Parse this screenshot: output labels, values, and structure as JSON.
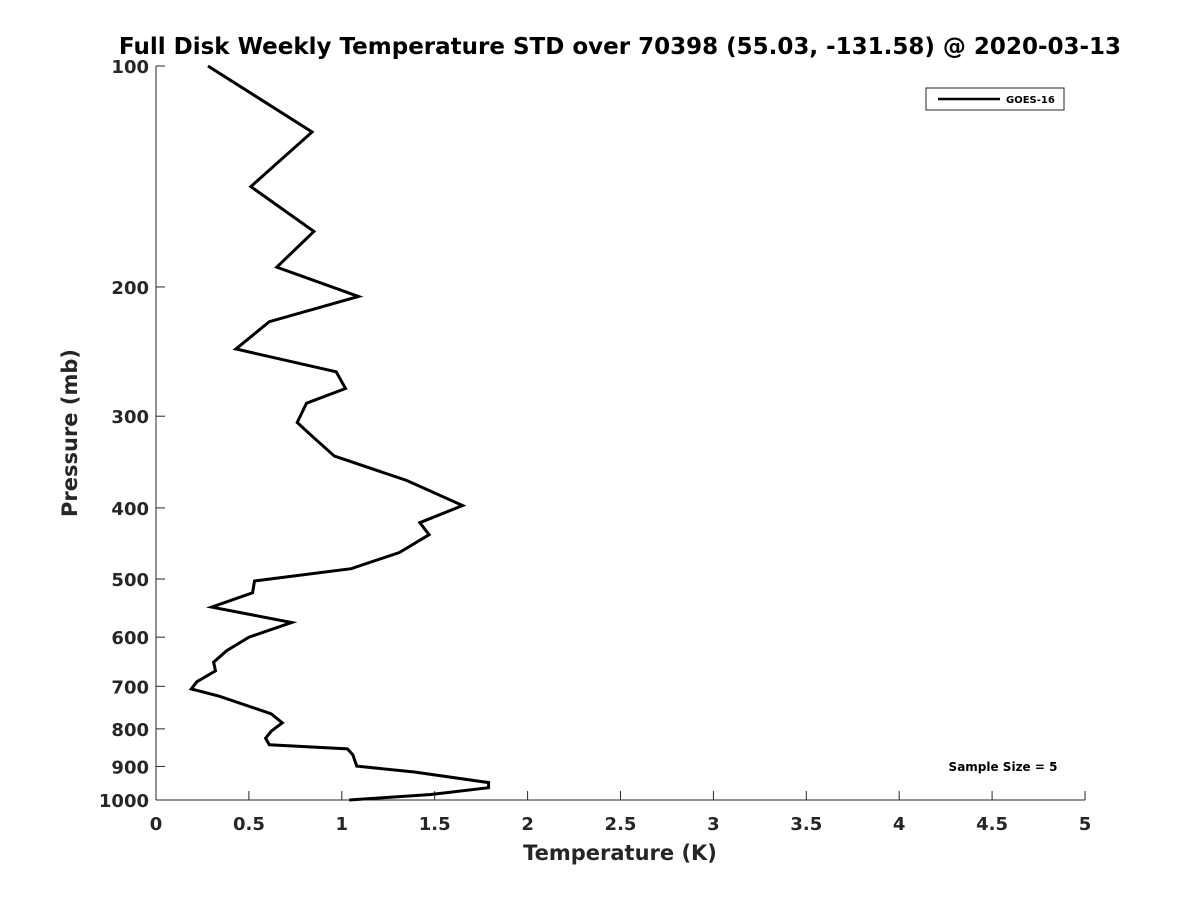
{
  "chart_data": {
    "type": "line",
    "title": "Full Disk Weekly Temperature STD over 70398 (55.03, -131.58) @ 2020-03-13",
    "xlabel": "Temperature (K)",
    "ylabel": "Pressure (mb)",
    "xlim": [
      0,
      5
    ],
    "ylim": [
      100,
      1000
    ],
    "y_scale": "log",
    "y_reversed": true,
    "x_ticks": [
      0,
      0.5,
      1,
      1.5,
      2,
      2.5,
      3,
      3.5,
      4,
      4.5,
      5
    ],
    "x_tick_labels": [
      "0",
      "0.5",
      "1",
      "1.5",
      "2",
      "2.5",
      "3",
      "3.5",
      "4",
      "4.5",
      "5"
    ],
    "y_ticks": [
      100,
      200,
      300,
      400,
      500,
      600,
      700,
      800,
      900,
      1000
    ],
    "y_tick_labels": [
      "100",
      "200",
      "300",
      "400",
      "500",
      "600",
      "700",
      "800",
      "900",
      "1000"
    ],
    "grid": false,
    "legend": {
      "position": "top-right",
      "entries": [
        "GOES-16"
      ]
    },
    "annotation": "Sample Size = 5",
    "series": [
      {
        "name": "GOES-16",
        "color": "#000000",
        "x": [
          0.28,
          0.84,
          0.51,
          0.85,
          0.65,
          1.09,
          0.61,
          0.43,
          0.97,
          1.02,
          0.81,
          0.76,
          0.85,
          0.96,
          1.35,
          1.65,
          1.42,
          1.47,
          1.31,
          1.05,
          0.53,
          0.52,
          0.3,
          0.73,
          0.5,
          0.38,
          0.31,
          0.32,
          0.22,
          0.19,
          0.34,
          0.62,
          0.68,
          0.62,
          0.59,
          0.61,
          1.03,
          1.06,
          1.08,
          1.39,
          1.79,
          1.79,
          1.48,
          1.04
        ],
        "y": [
          100,
          123,
          146,
          168,
          188,
          206,
          223,
          243,
          261,
          275,
          288,
          306,
          321,
          340,
          367,
          397,
          419,
          435,
          460,
          484,
          503,
          522,
          546,
          573,
          600,
          626,
          649,
          667,
          690,
          706,
          722,
          763,
          785,
          806,
          824,
          841,
          852,
          868,
          899,
          916,
          947,
          962,
          983,
          1000
        ]
      }
    ]
  }
}
